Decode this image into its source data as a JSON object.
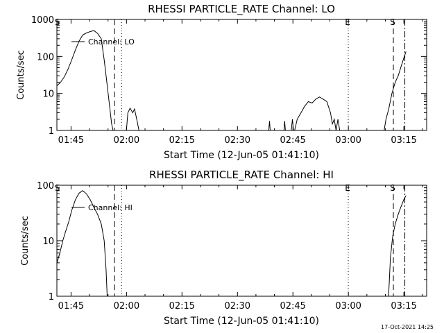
{
  "chart_data": [
    {
      "type": "line",
      "title": "RHESSI PARTICLE_RATE Channel: LO",
      "xlabel": "Start Time (12-Jun-05 01:41:10)",
      "ylabel": "Counts/sec",
      "yscale": "log",
      "ylim": [
        1,
        1000
      ],
      "xlim_min": [
        0,
        100
      ],
      "xticks": [
        {
          "label": "01:45",
          "min": 3.83
        },
        {
          "label": "02:00",
          "min": 18.83
        },
        {
          "label": "02:15",
          "min": 33.83
        },
        {
          "label": "02:30",
          "min": 48.83
        },
        {
          "label": "02:45",
          "min": 63.83
        },
        {
          "label": "03:00",
          "min": 78.83
        },
        {
          "label": "03:15",
          "min": 93.83
        }
      ],
      "yticks": [
        {
          "label": "1",
          "v": 1
        },
        {
          "label": "10",
          "v": 10
        },
        {
          "label": "100",
          "v": 100
        },
        {
          "label": "1000",
          "v": 1000
        }
      ],
      "legend": {
        "label": "Channel: LO",
        "placement": "top-left"
      },
      "markers": [
        {
          "label": "S",
          "min": 0.3,
          "style": "none"
        },
        {
          "label": "",
          "min": 15.6,
          "style": "dashed"
        },
        {
          "label": "",
          "min": 17.5,
          "style": "dotted"
        },
        {
          "label": "E",
          "min": 78.8,
          "style": "dotted"
        },
        {
          "label": "S",
          "min": 91.0,
          "style": "dashed"
        },
        {
          "label": "",
          "min": 94.1,
          "style": "dashdot"
        }
      ],
      "series": [
        {
          "name": "Channel: LO",
          "segments": [
            [
              [
                0,
                16
              ],
              [
                1,
                20
              ],
              [
                2,
                28
              ],
              [
                3,
                45
              ],
              [
                4,
                80
              ],
              [
                5,
                150
              ],
              [
                6,
                260
              ],
              [
                7,
                380
              ],
              [
                8,
                430
              ],
              [
                9,
                470
              ],
              [
                10,
                500
              ],
              [
                11,
                420
              ],
              [
                12,
                300
              ],
              [
                12.8,
                80
              ],
              [
                13.5,
                20
              ],
              [
                14.2,
                5
              ],
              [
                14.8,
                1.5
              ],
              [
                15.2,
                1
              ]
            ],
            [
              [
                18.8,
                1
              ],
              [
                19.2,
                3
              ],
              [
                19.8,
                4
              ],
              [
                20.5,
                3
              ],
              [
                21,
                3.8
              ],
              [
                21.6,
                2
              ],
              [
                22.2,
                1
              ]
            ],
            [
              [
                57.3,
                1
              ],
              [
                57.5,
                1.8
              ],
              [
                57.7,
                1
              ]
            ],
            [
              [
                61.4,
                1
              ],
              [
                61.6,
                1.8
              ],
              [
                61.8,
                1
              ]
            ],
            [
              [
                63.4,
                1
              ],
              [
                63.7,
                2
              ],
              [
                64,
                1
              ]
            ],
            [
              [
                64.3,
                1
              ],
              [
                65,
                2
              ],
              [
                66,
                3
              ],
              [
                67,
                4.5
              ],
              [
                68,
                6
              ],
              [
                69,
                5.5
              ],
              [
                70,
                7
              ],
              [
                71,
                8
              ],
              [
                72,
                7
              ],
              [
                73,
                6
              ],
              [
                74,
                3
              ],
              [
                74.5,
                1.5
              ],
              [
                75,
                2
              ],
              [
                75.5,
                1
              ],
              [
                76,
                2
              ],
              [
                76.5,
                1
              ]
            ],
            [
              [
                88.5,
                1
              ],
              [
                89,
                2
              ],
              [
                89.8,
                4
              ],
              [
                90.6,
                10
              ],
              [
                91.5,
                20
              ],
              [
                92.3,
                30
              ],
              [
                93,
                50
              ],
              [
                93.8,
                90
              ],
              [
                94.4,
                135
              ]
            ]
          ]
        }
      ]
    },
    {
      "type": "line",
      "title": "RHESSI PARTICLE_RATE Channel: HI",
      "xlabel": "Start Time (12-Jun-05 01:41:10)",
      "ylabel": "Counts/sec",
      "yscale": "log",
      "ylim": [
        1,
        100
      ],
      "xlim_min": [
        0,
        100
      ],
      "xticks": [
        {
          "label": "01:45",
          "min": 3.83
        },
        {
          "label": "02:00",
          "min": 18.83
        },
        {
          "label": "02:15",
          "min": 33.83
        },
        {
          "label": "02:30",
          "min": 48.83
        },
        {
          "label": "02:45",
          "min": 63.83
        },
        {
          "label": "03:00",
          "min": 78.83
        },
        {
          "label": "03:15",
          "min": 93.83
        }
      ],
      "yticks": [
        {
          "label": "1",
          "v": 1
        },
        {
          "label": "10",
          "v": 10
        },
        {
          "label": "100",
          "v": 100
        }
      ],
      "legend": {
        "label": "Channel: HI",
        "placement": "top-left"
      },
      "markers": [
        {
          "label": "S",
          "min": 0.3,
          "style": "none"
        },
        {
          "label": "",
          "min": 15.6,
          "style": "dashed"
        },
        {
          "label": "",
          "min": 17.5,
          "style": "dotted"
        },
        {
          "label": "E",
          "min": 78.8,
          "style": "dotted"
        },
        {
          "label": "S",
          "min": 91.0,
          "style": "dashed"
        },
        {
          "label": "",
          "min": 94.1,
          "style": "dashdot"
        }
      ],
      "series": [
        {
          "name": "Channel: HI",
          "segments": [
            [
              [
                0,
                4
              ],
              [
                0.8,
                6
              ],
              [
                1.6,
                10
              ],
              [
                2.4,
                15
              ],
              [
                3.2,
                22
              ],
              [
                4,
                35
              ],
              [
                5,
                55
              ],
              [
                6,
                72
              ],
              [
                7,
                80
              ],
              [
                8,
                70
              ],
              [
                9,
                55
              ],
              [
                10,
                40
              ],
              [
                11,
                30
              ],
              [
                12,
                20
              ],
              [
                12.8,
                10
              ],
              [
                13.3,
                3
              ],
              [
                13.6,
                1
              ]
            ],
            [
              [
                89.7,
                1
              ],
              [
                90.2,
                5
              ],
              [
                90.8,
                12
              ],
              [
                91.5,
                20
              ],
              [
                92.3,
                30
              ],
              [
                93,
                40
              ],
              [
                93.8,
                55
              ],
              [
                94.4,
                65
              ]
            ]
          ]
        }
      ]
    }
  ],
  "footer": {
    "timestamp": "17-Oct-2021 14:25"
  }
}
